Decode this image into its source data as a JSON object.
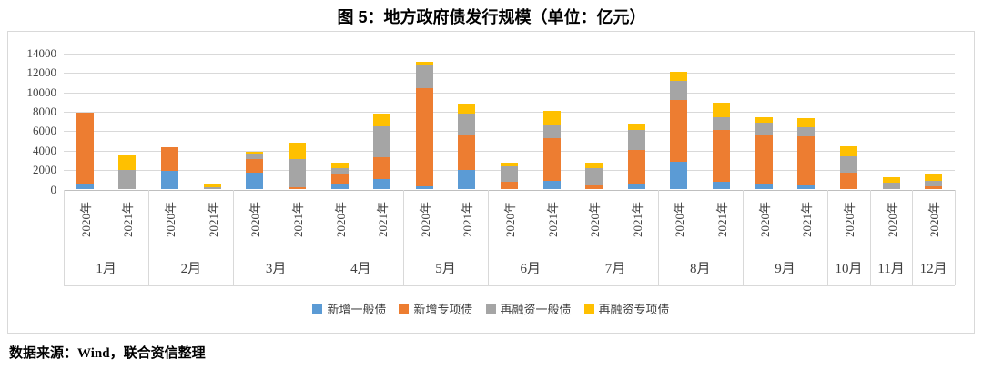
{
  "title": "图 5：地方政府债发行规模（单位：亿元）",
  "source_note": "数据来源：Wind，联合资信整理",
  "chart_data": {
    "type": "bar",
    "stacked": true,
    "unit": "亿元",
    "title": "图 5：地方政府债发行规模（单位：亿元）",
    "ylim": [
      0,
      14000
    ],
    "yticks": [
      0,
      2000,
      4000,
      6000,
      8000,
      10000,
      12000,
      14000
    ],
    "grid": true,
    "legend_position": "bottom",
    "months": [
      {
        "label": "1月",
        "bars": [
          "2020年",
          "2021年"
        ]
      },
      {
        "label": "2月",
        "bars": [
          "2020年",
          "2021年"
        ]
      },
      {
        "label": "3月",
        "bars": [
          "2020年",
          "2021年"
        ]
      },
      {
        "label": "4月",
        "bars": [
          "2020年",
          "2021年"
        ]
      },
      {
        "label": "5月",
        "bars": [
          "2020年",
          "2021年"
        ]
      },
      {
        "label": "6月",
        "bars": [
          "2020年",
          "2021年"
        ]
      },
      {
        "label": "7月",
        "bars": [
          "2020年",
          "2021年"
        ]
      },
      {
        "label": "8月",
        "bars": [
          "2020年",
          "2021年"
        ]
      },
      {
        "label": "9月",
        "bars": [
          "2020年",
          "2021年"
        ]
      },
      {
        "label": "10月",
        "bars": [
          "2020年"
        ]
      },
      {
        "label": "11月",
        "bars": [
          "2020年"
        ]
      },
      {
        "label": "12月",
        "bars": [
          "2020年"
        ]
      }
    ],
    "series": [
      {
        "name": "新增一般债",
        "color": "#5B9BD5",
        "values": [
          600,
          0,
          1900,
          0,
          1750,
          0,
          650,
          1050,
          350,
          2050,
          0,
          900,
          0,
          600,
          2850,
          800,
          650,
          400,
          0,
          0,
          0
        ]
      },
      {
        "name": "新增专项债",
        "color": "#ED7D31",
        "values": [
          7300,
          0,
          2400,
          0,
          1400,
          250,
          950,
          2300,
          10100,
          3550,
          800,
          4400,
          400,
          3450,
          6400,
          5300,
          4900,
          5100,
          1700,
          0,
          300
        ]
      },
      {
        "name": "再融资一般债",
        "color": "#A5A5A5",
        "values": [
          0,
          2000,
          0,
          250,
          500,
          2850,
          600,
          3100,
          2350,
          2200,
          1550,
          1350,
          1800,
          2050,
          1900,
          1350,
          1350,
          900,
          1750,
          700,
          550
        ]
      },
      {
        "name": "再融资专项债",
        "color": "#FFC000",
        "values": [
          0,
          1600,
          0,
          250,
          250,
          1750,
          600,
          1350,
          300,
          1000,
          450,
          1400,
          550,
          700,
          950,
          1450,
          500,
          900,
          950,
          550,
          800
        ]
      }
    ]
  },
  "legend": [
    {
      "label": "新增一般债",
      "color": "#5B9BD5"
    },
    {
      "label": "新增专项债",
      "color": "#ED7D31"
    },
    {
      "label": "再融资一般债",
      "color": "#A5A5A5"
    },
    {
      "label": "再融资专项债",
      "color": "#FFC000"
    }
  ],
  "colors": {
    "grid": "#D9D9D9",
    "axis": "#BFBFBF",
    "border": "#D9D9D9",
    "text": "#404040"
  }
}
